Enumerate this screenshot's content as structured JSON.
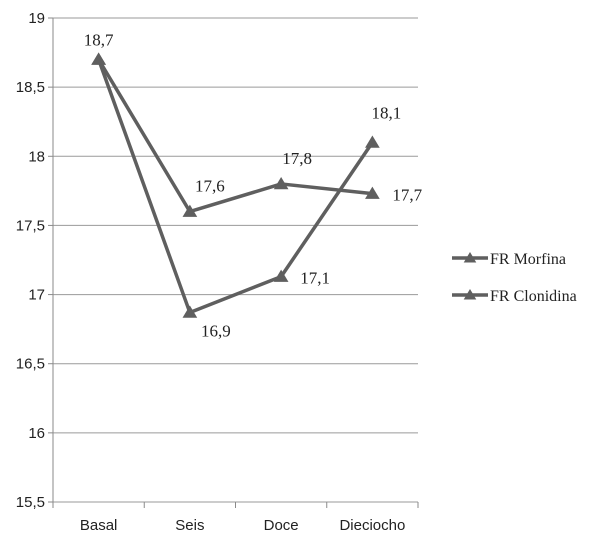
{
  "chart_data": {
    "type": "line",
    "title": "",
    "xlabel": "",
    "ylabel": "",
    "categories": [
      "Basal",
      "Seis",
      "Doce",
      "Dieciocho"
    ],
    "ylim": [
      15.5,
      19
    ],
    "yticks": [
      15.5,
      16,
      16.5,
      17,
      17.5,
      18,
      18.5,
      19
    ],
    "ytick_labels": [
      "15,5",
      "16",
      "16,5",
      "17",
      "17,5",
      "18",
      "18,5",
      "19"
    ],
    "grid": true,
    "legend_position": "right",
    "series_color": "#5f5f5f",
    "marker": "triangle",
    "series": [
      {
        "name": "FR Morfina",
        "values": [
          18.7,
          17.6,
          17.8,
          17.73
        ],
        "labels": [
          "18,7",
          "17,6",
          "17,8",
          "17,7"
        ]
      },
      {
        "name": "FR Clonidina",
        "values": [
          18.7,
          16.87,
          17.13,
          18.1
        ],
        "labels": [
          "",
          "16,9",
          "17,1",
          "18,1"
        ]
      }
    ]
  }
}
